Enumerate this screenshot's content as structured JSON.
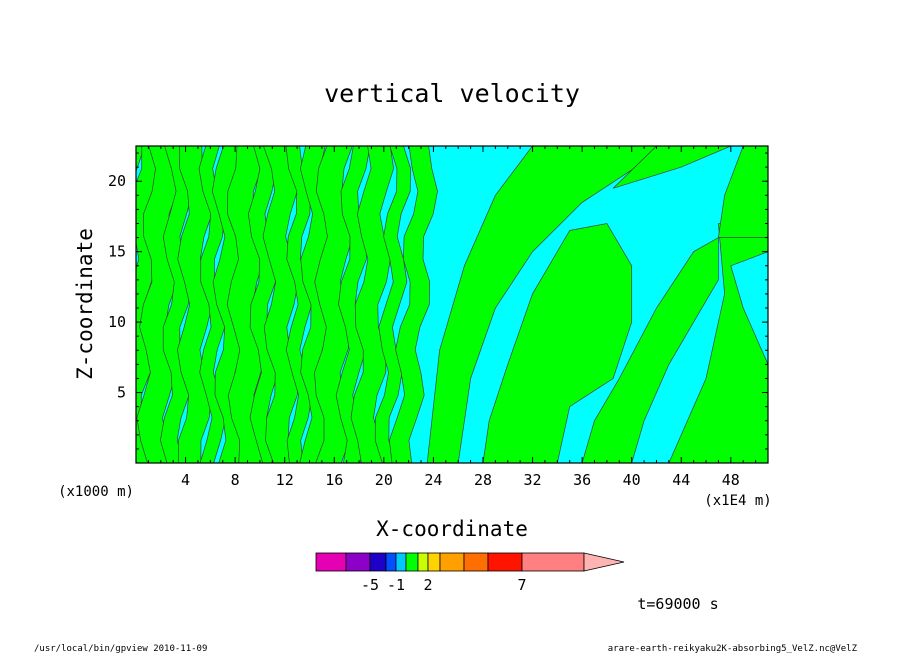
{
  "chart_data": {
    "type": "heatmap",
    "title": "vertical velocity",
    "xlabel": "X-coordinate",
    "ylabel": "Z-coordinate",
    "x_unit": "(x1E4 m)",
    "y_unit": "(x1000 m)",
    "xlim": [
      0,
      51
    ],
    "ylim": [
      0,
      22.5
    ],
    "x_ticks": [
      4,
      8,
      12,
      16,
      20,
      24,
      28,
      32,
      36,
      40,
      44,
      48
    ],
    "y_ticks": [
      5,
      10,
      15,
      20
    ],
    "grid": false,
    "field_colors": {
      "negative": "#00ffff",
      "positive": "#00ff00",
      "contour": "#404040"
    },
    "colorbar": {
      "colors": [
        "#e600b4",
        "#8c00c8",
        "#1e00c8",
        "#0050ff",
        "#00c8ff",
        "#00ff00",
        "#c8ff00",
        "#ffd200",
        "#ffa000",
        "#ff6e00",
        "#ff1400",
        "#ff8080",
        "#ffb4b4"
      ],
      "labels": [
        {
          "text": "-5",
          "after_index": 1
        },
        {
          "text": "-1",
          "after_index": 3
        },
        {
          "text": "2",
          "after_index": 6
        },
        {
          "text": "7",
          "after_index": 10
        }
      ]
    },
    "time_label": "t=69000 s"
  },
  "footer": {
    "left": "/usr/local/bin/gpview  2010-11-09",
    "right": "arare-earth-reikyaku2K-absorbing5_VelZ.nc@VelZ"
  }
}
